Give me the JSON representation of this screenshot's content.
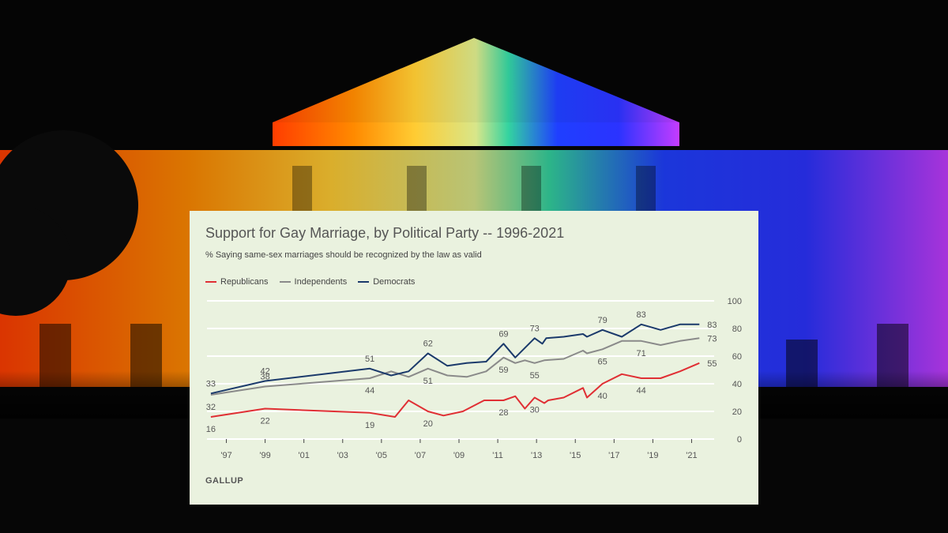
{
  "source": "GALLUP",
  "chart_data": {
    "type": "line",
    "title": "Support for Gay Marriage, by Political Party -- 1996-2021",
    "subtitle": "% Saying same-sex marriages should be recognized by the law as valid",
    "xlabel": "",
    "ylabel": "",
    "xlim": [
      1996,
      2022
    ],
    "ylim": [
      0,
      100
    ],
    "x_ticks": [
      1997,
      1999,
      2001,
      2003,
      2005,
      2007,
      2009,
      2011,
      2013,
      2015,
      2017,
      2019,
      2021
    ],
    "x_tick_labels": [
      "'97",
      "'99",
      "'01",
      "'03",
      "'05",
      "'07",
      "'09",
      "'11",
      "'13",
      "'15",
      "'17",
      "'19",
      "'21"
    ],
    "y_ticks": [
      0,
      20,
      40,
      60,
      80,
      100
    ],
    "y_tick_labels": [
      "0",
      "20",
      "40",
      "60",
      "80",
      "100"
    ],
    "grid": true,
    "legend": "top-left",
    "series": [
      {
        "name": "Republicans",
        "color": "#e02f34",
        "points": [
          [
            1996.2,
            16
          ],
          [
            1999,
            22
          ],
          [
            2004.4,
            19
          ],
          [
            2005.7,
            16
          ],
          [
            2006.4,
            28
          ],
          [
            2007.4,
            20
          ],
          [
            2008.2,
            17
          ],
          [
            2009.2,
            20
          ],
          [
            2010.3,
            28
          ],
          [
            2011.3,
            28
          ],
          [
            2011.9,
            31
          ],
          [
            2012.4,
            22
          ],
          [
            2012.9,
            30
          ],
          [
            2013.4,
            26
          ],
          [
            2013.6,
            28
          ],
          [
            2014.4,
            30
          ],
          [
            2015.4,
            37
          ],
          [
            2015.6,
            30
          ],
          [
            2016.4,
            40
          ],
          [
            2017.4,
            47
          ],
          [
            2018.4,
            44
          ],
          [
            2019.4,
            44
          ],
          [
            2020.4,
            49
          ],
          [
            2021.4,
            55
          ]
        ],
        "labels": [
          [
            "16",
            1996.2,
            16,
            "below"
          ],
          [
            "22",
            1999,
            22,
            "below"
          ],
          [
            "19",
            2004.4,
            19,
            "below"
          ],
          [
            "20",
            2007.4,
            20,
            "below"
          ],
          [
            "28",
            2011.3,
            28,
            "below"
          ],
          [
            "30",
            2012.9,
            30,
            "below"
          ],
          [
            "40",
            2016.4,
            40,
            "below"
          ],
          [
            "44",
            2018.4,
            44,
            "below"
          ],
          [
            "55",
            2021.4,
            55,
            "right"
          ]
        ]
      },
      {
        "name": "Independents",
        "color": "#8a8a8a",
        "points": [
          [
            1996.2,
            32
          ],
          [
            1999,
            38
          ],
          [
            2004.4,
            44
          ],
          [
            2005.5,
            49
          ],
          [
            2006.4,
            45
          ],
          [
            2007.4,
            51
          ],
          [
            2008.4,
            46
          ],
          [
            2009.4,
            45
          ],
          [
            2010.4,
            49
          ],
          [
            2011.3,
            59
          ],
          [
            2011.9,
            55
          ],
          [
            2012.4,
            57
          ],
          [
            2012.9,
            55
          ],
          [
            2013.4,
            57
          ],
          [
            2014.4,
            58
          ],
          [
            2015.4,
            64
          ],
          [
            2015.6,
            62
          ],
          [
            2016.4,
            65
          ],
          [
            2017.4,
            71
          ],
          [
            2018.4,
            71
          ],
          [
            2019.4,
            68
          ],
          [
            2020.4,
            71
          ],
          [
            2021.4,
            73
          ]
        ],
        "labels": [
          [
            "32",
            1996.2,
            32,
            "below"
          ],
          [
            "38",
            1999,
            38,
            "above"
          ],
          [
            "44",
            2004.4,
            44,
            "below"
          ],
          [
            "51",
            2007.4,
            51,
            "below"
          ],
          [
            "59",
            2011.3,
            59,
            "below"
          ],
          [
            "55",
            2012.9,
            55,
            "below"
          ],
          [
            "65",
            2016.4,
            65,
            "below"
          ],
          [
            "71",
            2018.4,
            71,
            "below"
          ],
          [
            "73",
            2021.4,
            73,
            "right"
          ]
        ]
      },
      {
        "name": "Democrats",
        "color": "#1b3a6b",
        "points": [
          [
            1996.2,
            33
          ],
          [
            1999,
            42
          ],
          [
            2004.4,
            51
          ],
          [
            2005.5,
            46
          ],
          [
            2006.4,
            49
          ],
          [
            2007.4,
            62
          ],
          [
            2008.4,
            53
          ],
          [
            2009.4,
            55
          ],
          [
            2010.4,
            56
          ],
          [
            2011.3,
            69
          ],
          [
            2011.9,
            59
          ],
          [
            2012.9,
            73
          ],
          [
            2013.3,
            69
          ],
          [
            2013.5,
            73
          ],
          [
            2014.4,
            74
          ],
          [
            2015.4,
            76
          ],
          [
            2015.6,
            74
          ],
          [
            2016.4,
            79
          ],
          [
            2017.4,
            74
          ],
          [
            2018.4,
            83
          ],
          [
            2019.4,
            79
          ],
          [
            2020.4,
            83
          ],
          [
            2021.4,
            83
          ]
        ],
        "labels": [
          [
            "33",
            1996.2,
            33,
            "above"
          ],
          [
            "42",
            1999,
            42,
            "above"
          ],
          [
            "51",
            2004.4,
            51,
            "above"
          ],
          [
            "62",
            2007.4,
            62,
            "above"
          ],
          [
            "69",
            2011.3,
            69,
            "above"
          ],
          [
            "73",
            2012.9,
            73,
            "above"
          ],
          [
            "79",
            2016.4,
            79,
            "above"
          ],
          [
            "83",
            2018.4,
            83,
            "above"
          ],
          [
            "83",
            2021.4,
            83,
            "right"
          ]
        ]
      }
    ]
  }
}
